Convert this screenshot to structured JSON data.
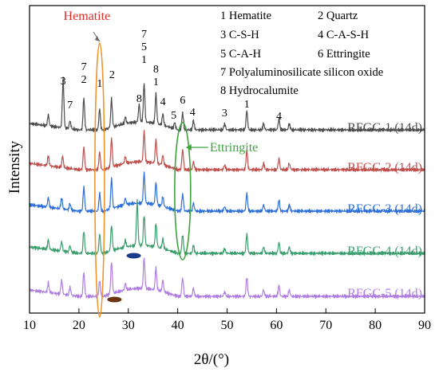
{
  "chart_data": {
    "type": "line",
    "xlabel": "2θ/(°)",
    "ylabel": "Intensity",
    "xlim": [
      10,
      90
    ],
    "x_ticks": [
      10,
      20,
      30,
      40,
      50,
      60,
      70,
      80,
      90
    ],
    "grid": false,
    "legend": [
      {
        "id": "1",
        "text": "1 Hematite"
      },
      {
        "id": "2",
        "text": "2 Quartz"
      },
      {
        "id": "3",
        "text": "3 C-S-H"
      },
      {
        "id": "4",
        "text": "4 C-A-S-H"
      },
      {
        "id": "5",
        "text": "5 C-A-H"
      },
      {
        "id": "6",
        "text": "6 Ettringite"
      },
      {
        "id": "7",
        "text": "7 Polyaluminosilicate silicon oxide"
      },
      {
        "id": "8",
        "text": "8 Hydrocalumite"
      }
    ],
    "annotations": {
      "hematite_label": "Hematite",
      "hematite_color": "#d9302a",
      "ettringite_label": "Ettringite",
      "ettringite_color": "#3da33d",
      "hematite_ellipse_center": 24.2,
      "ettringite_ellipse_center": 41.0,
      "peak_labels": [
        {
          "x": 16.8,
          "text": "3"
        },
        {
          "x": 18.2,
          "text": "7"
        },
        {
          "x": 21.0,
          "text": "7"
        },
        {
          "x": 21.0,
          "text": "2"
        },
        {
          "x": 24.2,
          "text": "1"
        },
        {
          "x": 26.7,
          "text": "2"
        },
        {
          "x": 32.2,
          "text": "8"
        },
        {
          "x": 33.2,
          "text": "7"
        },
        {
          "x": 33.2,
          "text": "5"
        },
        {
          "x": 33.2,
          "text": "1"
        },
        {
          "x": 35.6,
          "text": "8"
        },
        {
          "x": 35.6,
          "text": "1"
        },
        {
          "x": 37.0,
          "text": "4"
        },
        {
          "x": 39.2,
          "text": "5"
        },
        {
          "x": 41.0,
          "text": "6"
        },
        {
          "x": 43.0,
          "text": "4"
        },
        {
          "x": 49.5,
          "text": "3"
        },
        {
          "x": 54.0,
          "text": "1"
        },
        {
          "x": 60.5,
          "text": "4"
        }
      ]
    },
    "series": [
      {
        "name": "RFGC-1 (14d)",
        "color": "#4d4d4d",
        "peaks": [
          [
            13.8,
            14
          ],
          [
            16.8,
            62
          ],
          [
            18.2,
            10
          ],
          [
            21.0,
            40
          ],
          [
            24.2,
            26
          ],
          [
            26.6,
            36
          ],
          [
            29.4,
            8
          ],
          [
            32.2,
            22
          ],
          [
            33.2,
            48
          ],
          [
            35.6,
            38
          ],
          [
            37.0,
            14
          ],
          [
            39.4,
            8
          ],
          [
            41.0,
            22
          ],
          [
            43.2,
            12
          ],
          [
            49.5,
            8
          ],
          [
            54.0,
            24
          ],
          [
            57.4,
            8
          ],
          [
            60.5,
            14
          ],
          [
            62.6,
            8
          ]
        ]
      },
      {
        "name": "RFGC-2 (14d)",
        "color": "#c0504d",
        "peaks": [
          [
            13.8,
            12
          ],
          [
            16.7,
            14
          ],
          [
            21.0,
            28
          ],
          [
            24.2,
            22
          ],
          [
            26.6,
            36
          ],
          [
            29.4,
            8
          ],
          [
            33.2,
            38
          ],
          [
            35.6,
            30
          ],
          [
            37.0,
            12
          ],
          [
            41.0,
            26
          ],
          [
            43.2,
            10
          ],
          [
            49.5,
            6
          ],
          [
            54.0,
            24
          ],
          [
            57.4,
            8
          ],
          [
            60.5,
            14
          ],
          [
            62.6,
            8
          ]
        ]
      },
      {
        "name": "RFGC-3 (14d)",
        "color": "#2e6fd8",
        "peaks": [
          [
            13.8,
            12
          ],
          [
            16.5,
            14
          ],
          [
            18.2,
            8
          ],
          [
            21.0,
            30
          ],
          [
            24.2,
            22
          ],
          [
            26.6,
            38
          ],
          [
            29.4,
            8
          ],
          [
            33.2,
            38
          ],
          [
            35.6,
            28
          ],
          [
            37.0,
            12
          ],
          [
            41.0,
            22
          ],
          [
            43.2,
            10
          ],
          [
            49.5,
            6
          ],
          [
            54.0,
            22
          ],
          [
            57.4,
            8
          ],
          [
            60.5,
            14
          ],
          [
            62.6,
            8
          ]
        ]
      },
      {
        "name": "RFGC-4 (14d)",
        "color": "#3a9e6d",
        "peaks": [
          [
            13.8,
            12
          ],
          [
            16.5,
            12
          ],
          [
            18.2,
            8
          ],
          [
            21.0,
            28
          ],
          [
            24.2,
            24
          ],
          [
            26.6,
            32
          ],
          [
            29.4,
            8
          ],
          [
            31.8,
            56
          ],
          [
            33.2,
            38
          ],
          [
            35.6,
            30
          ],
          [
            37.0,
            12
          ],
          [
            41.0,
            24
          ],
          [
            43.2,
            10
          ],
          [
            49.5,
            6
          ],
          [
            54.0,
            24
          ],
          [
            57.4,
            8
          ],
          [
            60.5,
            14
          ],
          [
            62.6,
            8
          ]
        ]
      },
      {
        "name": "RFGC-5 (14d)",
        "color": "#b07ee0",
        "peaks": [
          [
            13.8,
            12
          ],
          [
            16.5,
            18
          ],
          [
            18.2,
            10
          ],
          [
            21.0,
            30
          ],
          [
            24.2,
            20
          ],
          [
            26.6,
            40
          ],
          [
            29.4,
            8
          ],
          [
            33.2,
            38
          ],
          [
            35.6,
            28
          ],
          [
            37.0,
            14
          ],
          [
            41.0,
            24
          ],
          [
            43.2,
            10
          ],
          [
            49.5,
            6
          ],
          [
            54.0,
            24
          ],
          [
            57.4,
            8
          ],
          [
            60.5,
            14
          ],
          [
            62.6,
            8
          ]
        ]
      }
    ]
  }
}
